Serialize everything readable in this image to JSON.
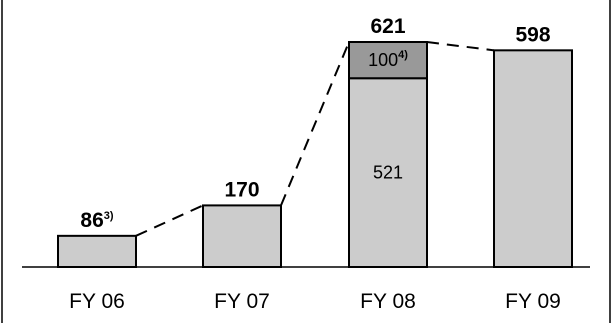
{
  "chart_data": {
    "type": "bar",
    "stacked": true,
    "title": "",
    "xlabel": "",
    "ylabel": "",
    "grid": false,
    "categories": [
      "FY 06",
      "FY 07",
      "FY 08",
      "FY 09"
    ],
    "ylim": [
      0,
      621
    ],
    "series": [
      {
        "values": [
          86,
          170,
          521,
          598
        ],
        "color": "#cccccc"
      },
      {
        "values": [
          0,
          0,
          100,
          0
        ],
        "color": "#999999"
      }
    ],
    "totals": [
      {
        "value": "86",
        "note": "3)"
      },
      {
        "value": "170",
        "note": ""
      },
      {
        "value": "621",
        "note": ""
      },
      {
        "value": "598",
        "note": ""
      }
    ],
    "segment_labels": [
      {
        "category": "FY 08",
        "series": 0,
        "text": "521",
        "note": ""
      },
      {
        "category": "FY 08",
        "series": 1,
        "text": "100",
        "note": "4)"
      }
    ],
    "connector_style": "dashed"
  }
}
